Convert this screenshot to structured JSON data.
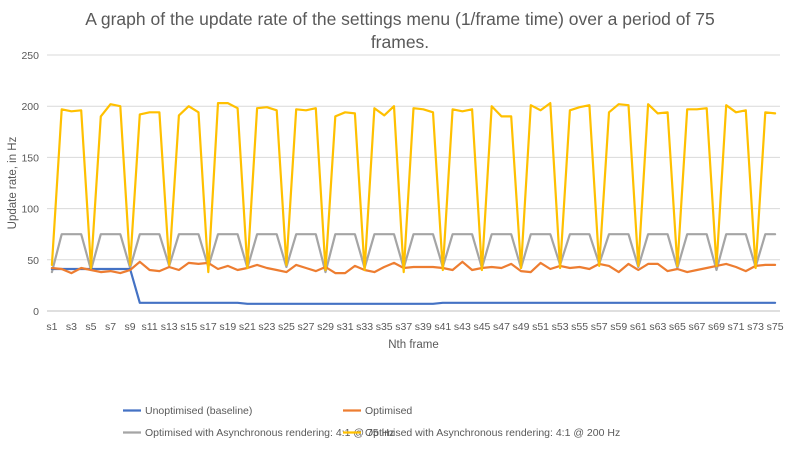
{
  "chart_data": {
    "type": "line",
    "title": "A graph of the update rate of the settings menu (1/frame time) over a period of 75 frames.",
    "xlabel": "Nth frame",
    "ylabel": "Update rate, in Hz",
    "ylim": [
      0,
      250
    ],
    "yticks": [
      0,
      50,
      100,
      150,
      200,
      250
    ],
    "grid": true,
    "legend_position": "bottom",
    "x": [
      "s1",
      "s2",
      "s3",
      "s4",
      "s5",
      "s6",
      "s7",
      "s8",
      "s9",
      "s10",
      "s11",
      "s12",
      "s13",
      "s14",
      "s15",
      "s16",
      "s17",
      "s18",
      "s19",
      "s20",
      "s21",
      "s22",
      "s23",
      "s24",
      "s25",
      "s26",
      "s27",
      "s28",
      "s29",
      "s30",
      "s31",
      "s32",
      "s33",
      "s34",
      "s35",
      "s36",
      "s37",
      "s38",
      "s39",
      "s40",
      "s41",
      "s42",
      "s43",
      "s44",
      "s45",
      "s46",
      "s47",
      "s48",
      "s49",
      "s50",
      "s51",
      "s52",
      "s53",
      "s54",
      "s55",
      "s56",
      "s57",
      "s58",
      "s59",
      "s60",
      "s61",
      "s62",
      "s63",
      "s64",
      "s65",
      "s66",
      "s67",
      "s68",
      "s69",
      "s70",
      "s71",
      "s72",
      "s73",
      "s74",
      "s75"
    ],
    "xtick_labels_shown": [
      "s1",
      "s3",
      "s5",
      "s7",
      "s9",
      "s11",
      "s13",
      "s15",
      "s17",
      "s19",
      "s21",
      "s23",
      "s25",
      "s27",
      "s29",
      "s31",
      "s33",
      "s35",
      "s37",
      "s39",
      "s41",
      "s43",
      "s45",
      "s47",
      "s49",
      "s51",
      "s53",
      "s55",
      "s57",
      "s59",
      "s61",
      "s63",
      "s65",
      "s67",
      "s69",
      "s71",
      "s73",
      "s75"
    ],
    "series": [
      {
        "name": "Unoptimised (baseline)",
        "color": "#4472C4",
        "values": [
          41,
          41,
          41,
          41,
          41,
          41,
          41,
          41,
          41,
          8,
          8,
          8,
          8,
          8,
          8,
          8,
          8,
          8,
          8,
          8,
          7,
          7,
          7,
          7,
          7,
          7,
          7,
          7,
          7,
          7,
          7,
          7,
          7,
          7,
          7,
          7,
          7,
          7,
          7,
          7,
          8,
          8,
          8,
          8,
          8,
          8,
          8,
          8,
          8,
          8,
          8,
          8,
          8,
          8,
          8,
          8,
          8,
          8,
          8,
          8,
          8,
          8,
          8,
          8,
          8,
          8,
          8,
          8,
          8,
          8,
          8,
          8,
          8,
          8,
          8
        ]
      },
      {
        "name": "Optimised",
        "color": "#ED7D31",
        "values": [
          42,
          41,
          37,
          42,
          40,
          38,
          39,
          37,
          40,
          48,
          40,
          39,
          43,
          40,
          47,
          46,
          47,
          41,
          44,
          40,
          42,
          45,
          42,
          40,
          38,
          45,
          42,
          39,
          43,
          37,
          37,
          44,
          40,
          38,
          43,
          47,
          42,
          43,
          43,
          43,
          42,
          40,
          48,
          40,
          42,
          43,
          42,
          46,
          39,
          38,
          47,
          41,
          44,
          42,
          43,
          41,
          46,
          44,
          38,
          46,
          40,
          46,
          46,
          39,
          41,
          38,
          40,
          42,
          44,
          46,
          43,
          39,
          44,
          45,
          45
        ]
      },
      {
        "name": "Optimised with Asynchronous rendering: 4:1 @ 75 Hz",
        "color": "#A5A5A5",
        "values": [
          38,
          75,
          75,
          75,
          40,
          75,
          75,
          75,
          42,
          75,
          75,
          75,
          44,
          75,
          75,
          75,
          43,
          75,
          75,
          75,
          42,
          75,
          75,
          75,
          43,
          75,
          75,
          75,
          38,
          75,
          75,
          75,
          42,
          75,
          75,
          75,
          42,
          75,
          75,
          75,
          43,
          75,
          75,
          75,
          42,
          75,
          75,
          75,
          42,
          75,
          75,
          75,
          45,
          75,
          75,
          75,
          46,
          75,
          75,
          75,
          43,
          75,
          75,
          75,
          42,
          75,
          75,
          75,
          40,
          75,
          75,
          75,
          43,
          75,
          75
        ]
      },
      {
        "name": "Optimised with Asynchronous rendering: 4:1 @ 200 Hz",
        "color": "#FFC000",
        "values": [
          45,
          197,
          195,
          196,
          42,
          190,
          202,
          200,
          45,
          192,
          194,
          194,
          45,
          191,
          200,
          194,
          38,
          203,
          203,
          198,
          42,
          198,
          199,
          196,
          45,
          197,
          196,
          198,
          40,
          190,
          194,
          193,
          40,
          198,
          191,
          200,
          38,
          198,
          197,
          194,
          40,
          197,
          195,
          197,
          40,
          200,
          190,
          190,
          42,
          201,
          196,
          203,
          42,
          196,
          199,
          201,
          44,
          194,
          202,
          201,
          44,
          202,
          193,
          194,
          44,
          197,
          197,
          198,
          44,
          201,
          194,
          196,
          42,
          194,
          193
        ]
      }
    ]
  }
}
